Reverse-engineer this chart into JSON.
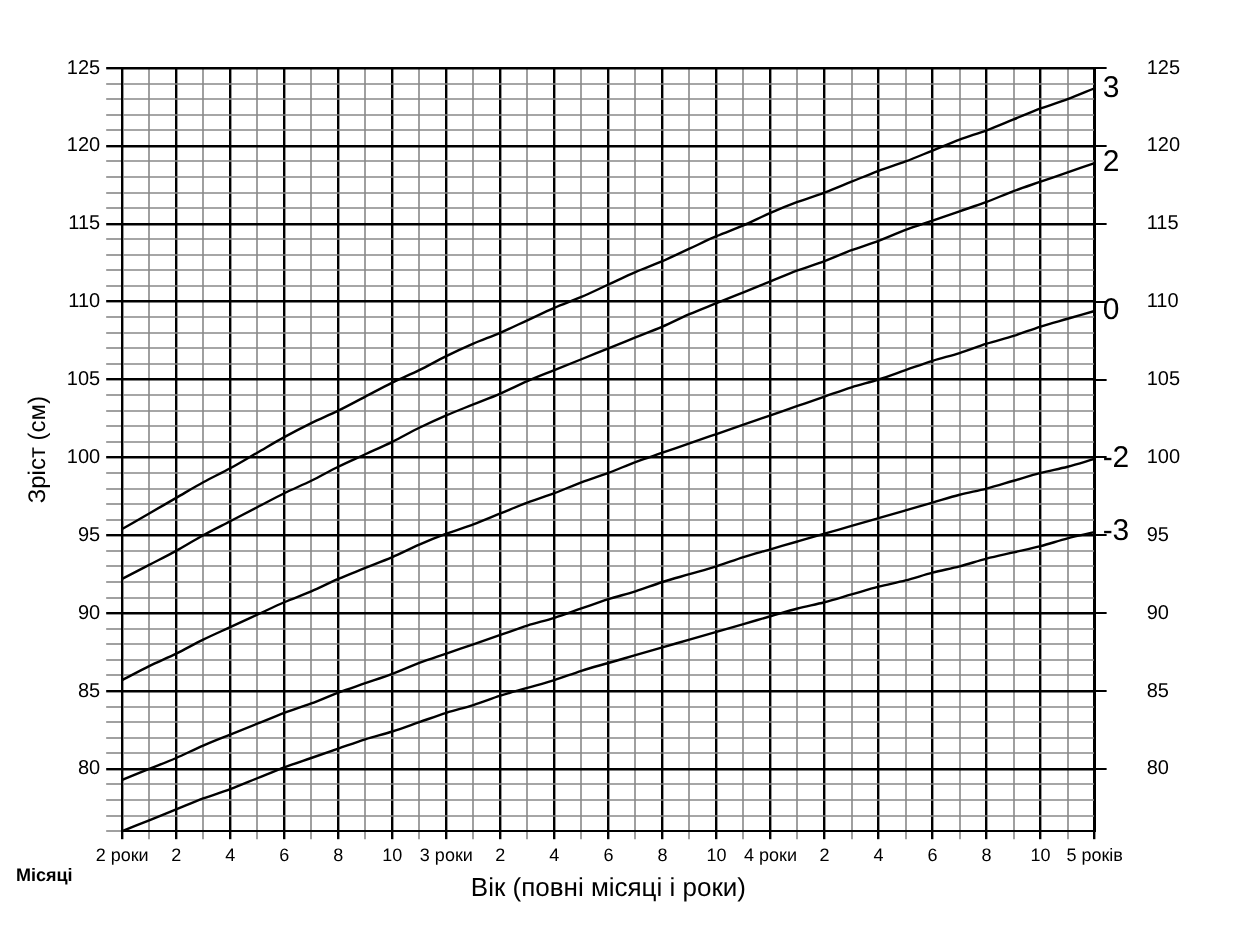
{
  "chart_data": {
    "type": "line",
    "xlabel": "Вік (повні місяці і роки)",
    "ylabel": "Зріст (см)",
    "annotations": [
      "Місяці"
    ],
    "categories": [
      "2 роки",
      null,
      "2",
      null,
      "4",
      null,
      "6",
      null,
      "8",
      null,
      "10",
      null,
      "3 роки",
      null,
      "2",
      null,
      "4",
      null,
      "6",
      null,
      "8",
      null,
      "10",
      null,
      "4 роки",
      null,
      "2",
      null,
      "4",
      null,
      "6",
      null,
      "8",
      null,
      "10",
      null,
      "5 років"
    ],
    "series": [
      {
        "name": "3",
        "color": "#000000",
        "values": [
          95.4,
          96.4,
          97.4,
          98.4,
          99.3,
          100.3,
          101.3,
          102.2,
          103.0,
          103.9,
          104.8,
          105.6,
          106.5,
          107.3,
          108.0,
          108.8,
          109.6,
          110.3,
          111.1,
          111.9,
          112.6,
          113.4,
          114.2,
          114.9,
          115.7,
          116.4,
          117.0,
          117.7,
          118.4,
          119.0,
          119.7,
          120.4,
          121.0,
          121.7,
          122.4,
          123.0,
          123.7
        ]
      },
      {
        "name": "2",
        "color": "#000000",
        "values": [
          92.2,
          93.1,
          94.0,
          95.0,
          95.9,
          96.8,
          97.7,
          98.5,
          99.4,
          100.2,
          101.0,
          101.9,
          102.7,
          103.4,
          104.1,
          104.9,
          105.6,
          106.3,
          107.0,
          107.7,
          108.4,
          109.2,
          109.9,
          110.6,
          111.3,
          112.0,
          112.6,
          113.3,
          113.9,
          114.6,
          115.2,
          115.8,
          116.4,
          117.1,
          117.7,
          118.3,
          118.9
        ]
      },
      {
        "name": "0",
        "color": "#000000",
        "values": [
          85.7,
          86.6,
          87.4,
          88.3,
          89.1,
          89.9,
          90.7,
          91.4,
          92.2,
          92.9,
          93.6,
          94.4,
          95.1,
          95.7,
          96.4,
          97.1,
          97.7,
          98.4,
          99.0,
          99.7,
          100.3,
          100.9,
          101.5,
          102.1,
          102.7,
          103.3,
          103.9,
          104.5,
          105.0,
          105.6,
          106.2,
          106.7,
          107.3,
          107.8,
          108.4,
          108.9,
          109.4
        ]
      },
      {
        "name": "-2",
        "color": "#000000",
        "values": [
          79.3,
          80.0,
          80.7,
          81.5,
          82.2,
          82.9,
          83.6,
          84.2,
          84.9,
          85.5,
          86.1,
          86.8,
          87.4,
          88.0,
          88.6,
          89.2,
          89.7,
          90.3,
          90.9,
          91.4,
          92.0,
          92.5,
          93.0,
          93.6,
          94.1,
          94.6,
          95.1,
          95.6,
          96.1,
          96.6,
          97.1,
          97.6,
          98.0,
          98.5,
          99.0,
          99.4,
          99.9
        ]
      },
      {
        "name": "-3",
        "color": "#000000",
        "values": [
          76.0,
          76.7,
          77.4,
          78.1,
          78.7,
          79.4,
          80.1,
          80.7,
          81.3,
          81.9,
          82.4,
          83.0,
          83.6,
          84.1,
          84.7,
          85.2,
          85.7,
          86.3,
          86.8,
          87.3,
          87.8,
          88.3,
          88.8,
          89.3,
          89.8,
          90.3,
          90.7,
          91.2,
          91.7,
          92.1,
          92.6,
          93.0,
          93.5,
          93.9,
          94.3,
          94.8,
          95.2
        ]
      }
    ],
    "ylim": [
      76,
      125
    ],
    "yticks": [
      {
        "value": 76,
        "label": null
      },
      {
        "value": 77,
        "label": null
      },
      {
        "value": 78,
        "label": null
      },
      {
        "value": 79,
        "label": null
      },
      80,
      {
        "value": 81,
        "label": null
      },
      {
        "value": 82,
        "label": null
      },
      {
        "value": 83,
        "label": null
      },
      {
        "value": 84,
        "label": null
      },
      85,
      {
        "value": 86,
        "label": null
      },
      {
        "value": 87,
        "label": null
      },
      {
        "value": 88,
        "label": null
      },
      {
        "value": 89,
        "label": null
      },
      90,
      {
        "value": 91,
        "label": null
      },
      {
        "value": 92,
        "label": null
      },
      {
        "value": 93,
        "label": null
      },
      {
        "value": 94,
        "label": null
      },
      95,
      {
        "value": 96,
        "label": null
      },
      {
        "value": 97,
        "label": null
      },
      {
        "value": 98,
        "label": null
      },
      {
        "value": 99,
        "label": null
      },
      100,
      {
        "value": 101,
        "label": null
      },
      {
        "value": 102,
        "label": null
      },
      {
        "value": 103,
        "label": null
      },
      {
        "value": 104,
        "label": null
      },
      105,
      {
        "value": 106,
        "label": null
      },
      {
        "value": 107,
        "label": null
      },
      {
        "value": 108,
        "label": null
      },
      {
        "value": 109,
        "label": null
      },
      110,
      {
        "value": 111,
        "label": null
      },
      {
        "value": 112,
        "label": null
      },
      {
        "value": 113,
        "label": null
      },
      {
        "value": 114,
        "label": null
      },
      115,
      {
        "value": 116,
        "label": null
      },
      {
        "value": 117,
        "label": null
      },
      {
        "value": 118,
        "label": null
      },
      {
        "value": 119,
        "label": null
      },
      120,
      {
        "value": 121,
        "label": null
      },
      {
        "value": 122,
        "label": null
      },
      {
        "value": 123,
        "label": null
      },
      {
        "value": 124,
        "label": null
      },
      125
    ],
    "y2lim": [
      76,
      125
    ],
    "y2ticks": [
      80,
      85,
      90,
      95,
      100,
      105,
      110,
      115,
      120,
      125
    ],
    "grid": true,
    "legend": false,
    "marker": "none",
    "line_style": "solid"
  }
}
